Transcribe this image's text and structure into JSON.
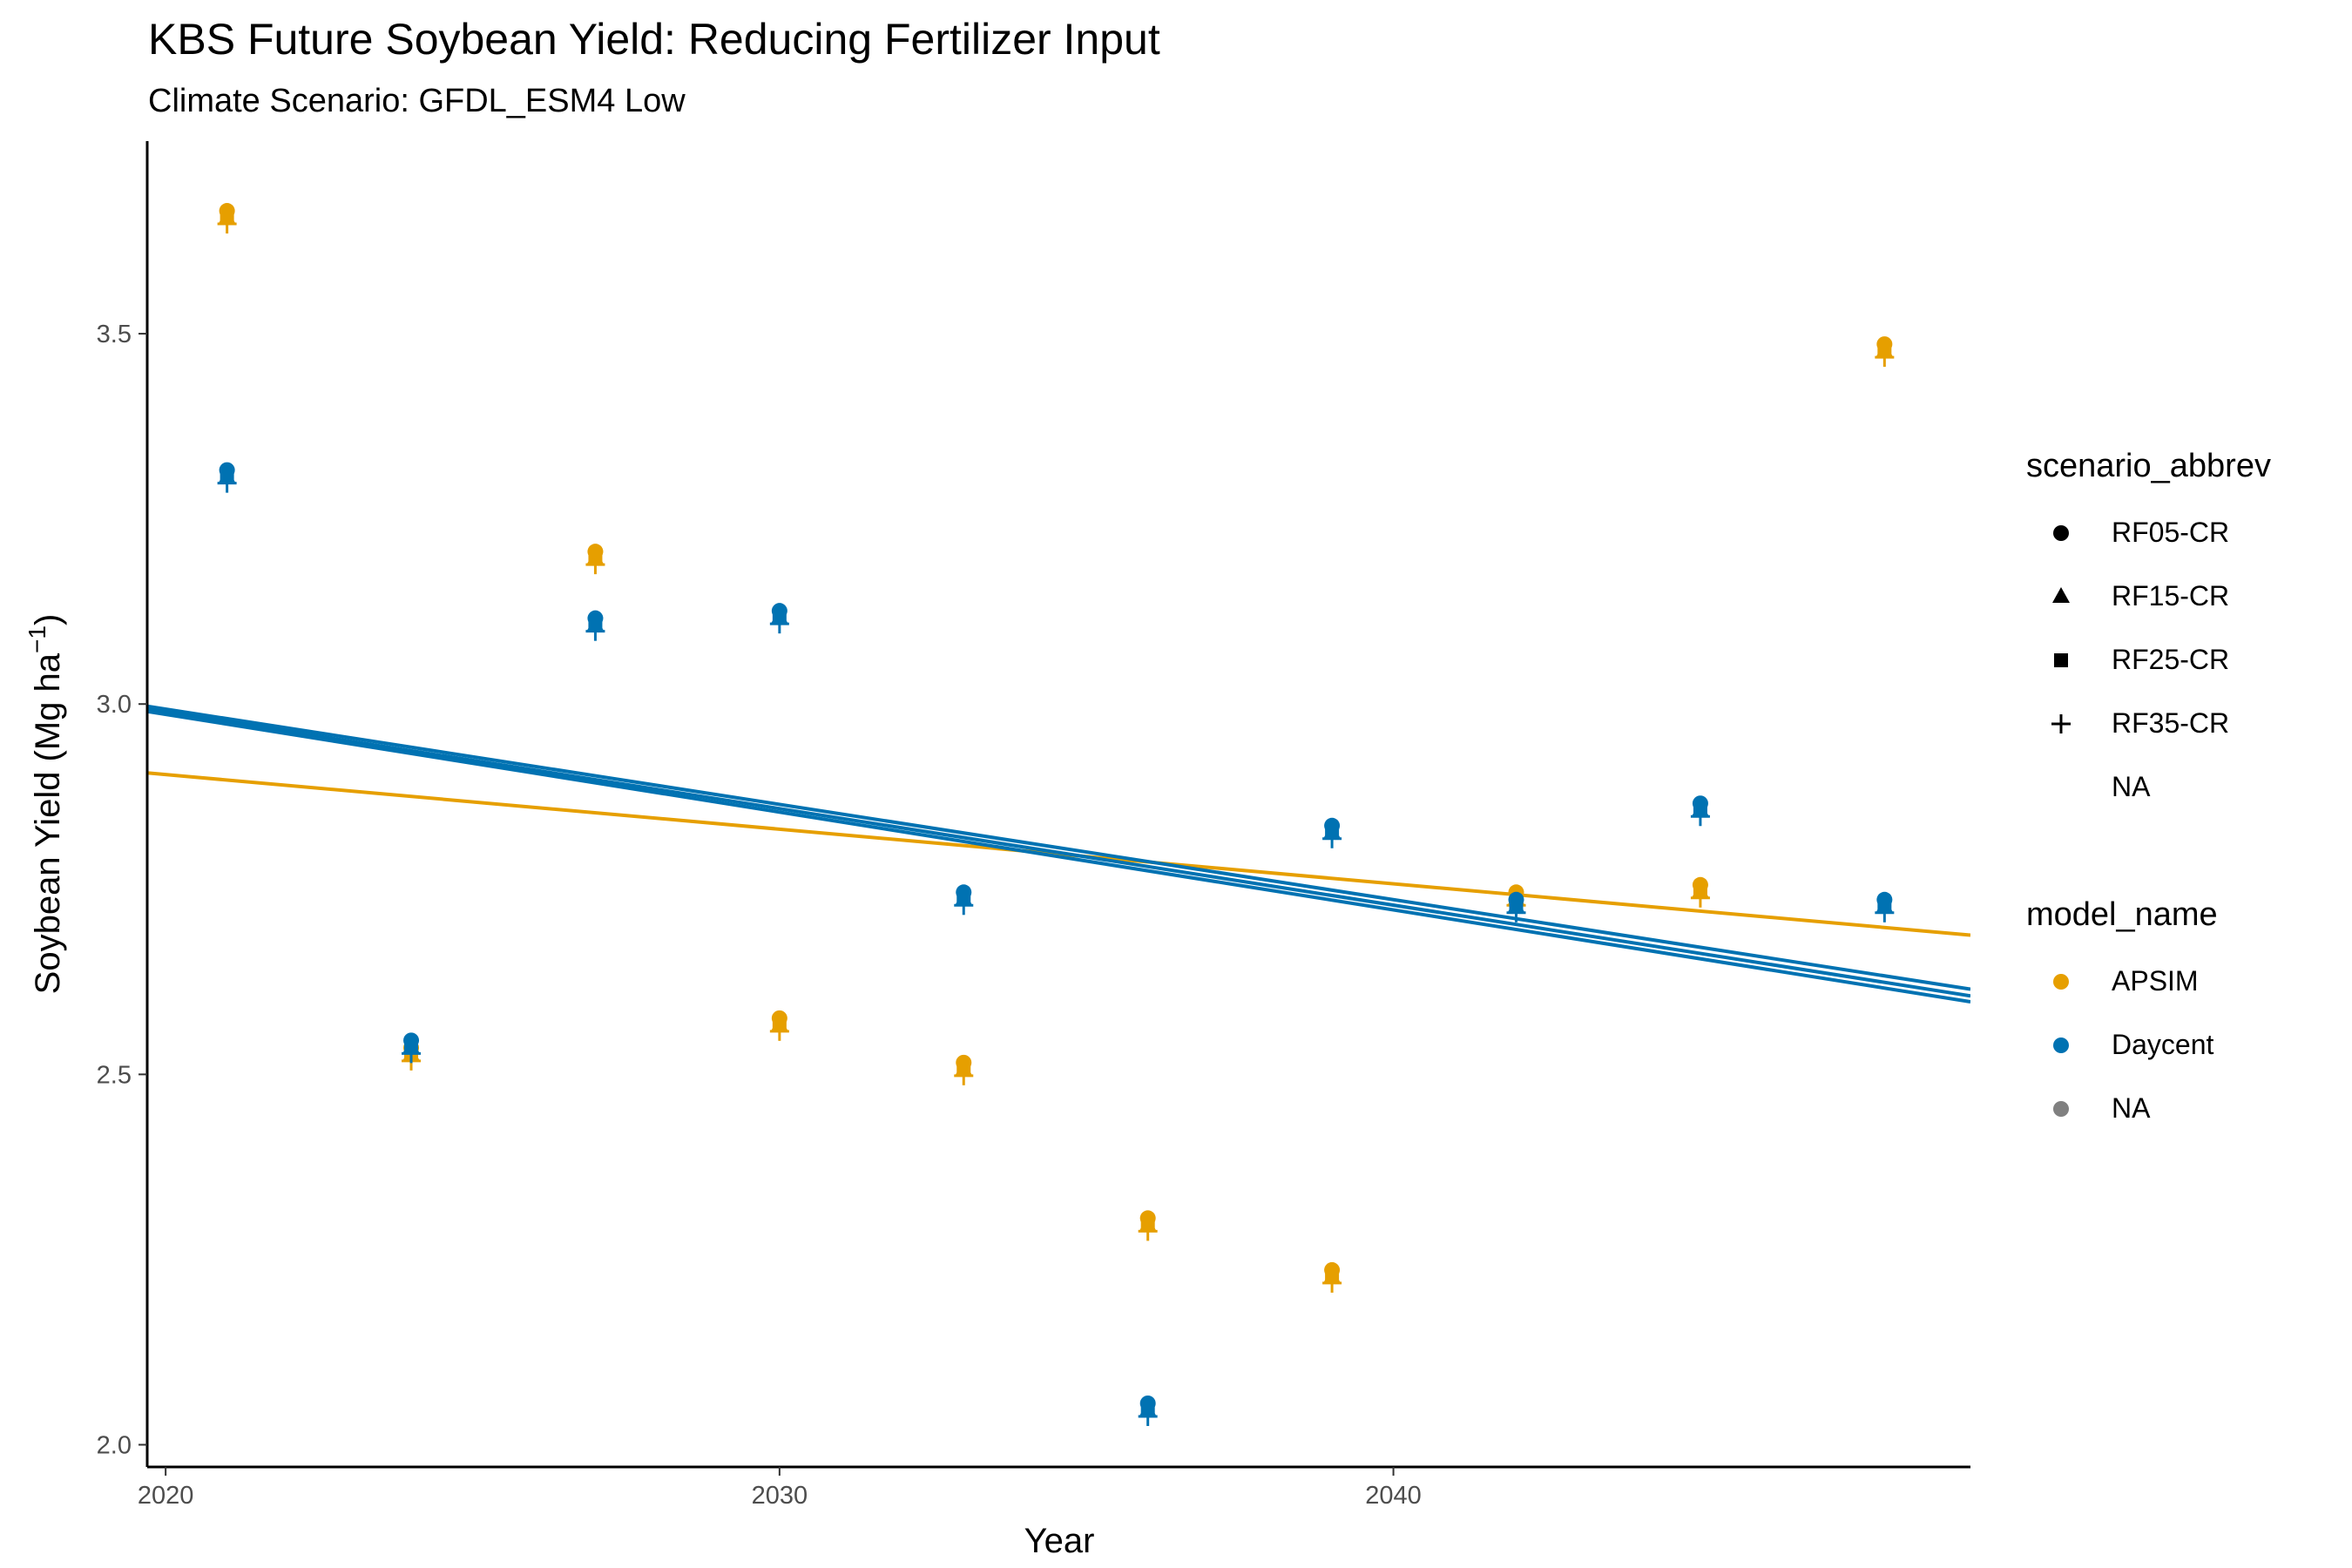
{
  "chart_data": {
    "type": "scatter",
    "title": "KBS Future Soybean Yield: Reducing Fertilizer Input",
    "subtitle": "Climate Scenario: GFDL_ESM4 Low",
    "xlabel": "Year",
    "ylabel": "Soybean Yield (Mg ha",
    "ylabel_superscript": "−1",
    "ylabel_suffix": ")",
    "xlim": [
      2019.7,
      2049.4
    ],
    "ylim": [
      1.97,
      3.76
    ],
    "x_ticks": [
      2020,
      2030,
      2040
    ],
    "y_ticks": [
      2.0,
      2.5,
      3.0,
      3.5
    ],
    "y_tick_labels": [
      "2.0",
      "2.5",
      "3.0",
      "3.5"
    ],
    "grid": false,
    "legend_position": "right",
    "colors": {
      "APSIM": "#E69F00",
      "Daycent": "#0072B2",
      "NA": "#808080"
    },
    "legends": [
      {
        "title": "scenario_abbrev",
        "items": [
          {
            "label": "RF05-CR",
            "shape": "circle"
          },
          {
            "label": "RF15-CR",
            "shape": "triangle"
          },
          {
            "label": "RF25-CR",
            "shape": "square"
          },
          {
            "label": "RF35-CR",
            "shape": "plus"
          },
          {
            "label": "NA",
            "shape": "none"
          }
        ]
      },
      {
        "title": "model_name",
        "items": [
          {
            "label": "APSIM",
            "color": "#E69F00"
          },
          {
            "label": "Daycent",
            "color": "#0072B2"
          },
          {
            "label": "NA",
            "color": "#808080"
          }
        ]
      }
    ],
    "series": [
      {
        "name": "APSIM",
        "x": [
          2021,
          2024,
          2027,
          2030,
          2033,
          2036,
          2039,
          2042,
          2045,
          2048
        ],
        "y": [
          3.66,
          2.53,
          3.2,
          2.57,
          2.51,
          2.3,
          2.23,
          2.74,
          2.75,
          3.48
        ]
      },
      {
        "name": "Daycent",
        "x": [
          2021,
          2024,
          2027,
          2030,
          2033,
          2036,
          2039,
          2042,
          2045,
          2048
        ],
        "y": [
          3.31,
          2.54,
          3.11,
          3.12,
          2.74,
          2.05,
          2.83,
          2.73,
          2.86,
          2.73
        ]
      }
    ],
    "trend_lines": [
      {
        "model": "APSIM",
        "x": [
          2019.7,
          2049.4
        ],
        "y": [
          2.907,
          2.688
        ]
      },
      {
        "model": "Daycent",
        "x": [
          2019.7,
          2049.4
        ],
        "y": [
          2.997,
          2.615
        ]
      },
      {
        "model": "Daycent",
        "x": [
          2019.7,
          2049.4
        ],
        "y": [
          2.993,
          2.606
        ]
      },
      {
        "model": "Daycent",
        "x": [
          2019.7,
          2049.4
        ],
        "y": [
          2.99,
          2.598
        ]
      }
    ]
  }
}
